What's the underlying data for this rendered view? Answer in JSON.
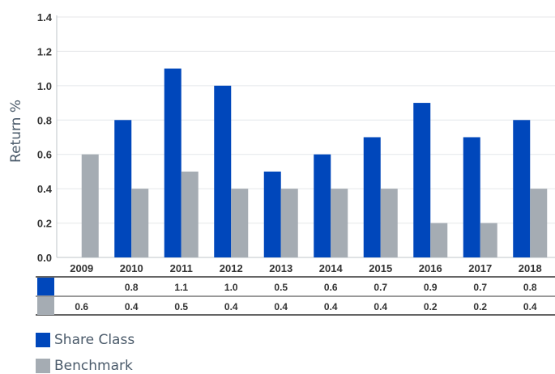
{
  "chart_data": {
    "type": "bar",
    "categories": [
      "2009",
      "2010",
      "2011",
      "2012",
      "2013",
      "2014",
      "2015",
      "2016",
      "2017",
      "2018"
    ],
    "series": [
      {
        "name": "Share Class",
        "color": "#0047bb",
        "values": [
          null,
          0.8,
          1.1,
          1.0,
          0.5,
          0.6,
          0.7,
          0.9,
          0.7,
          0.8
        ],
        "labels": [
          "",
          "0.8",
          "1.1",
          "1.0",
          "0.5",
          "0.6",
          "0.7",
          "0.9",
          "0.7",
          "0.8"
        ]
      },
      {
        "name": "Benchmark",
        "color": "#a5acb3",
        "values": [
          0.6,
          0.4,
          0.5,
          0.4,
          0.4,
          0.4,
          0.4,
          0.2,
          0.2,
          0.4
        ],
        "labels": [
          "0.6",
          "0.4",
          "0.5",
          "0.4",
          "0.4",
          "0.4",
          "0.4",
          "0.2",
          "0.2",
          "0.4"
        ]
      }
    ],
    "ylabel": "Return %",
    "ylim": [
      0,
      1.4
    ],
    "yticks": [
      "0.0",
      "0.2",
      "0.4",
      "0.6",
      "0.8",
      "1.0",
      "1.2",
      "1.4"
    ],
    "grid": true,
    "legend": "bottom-left"
  }
}
